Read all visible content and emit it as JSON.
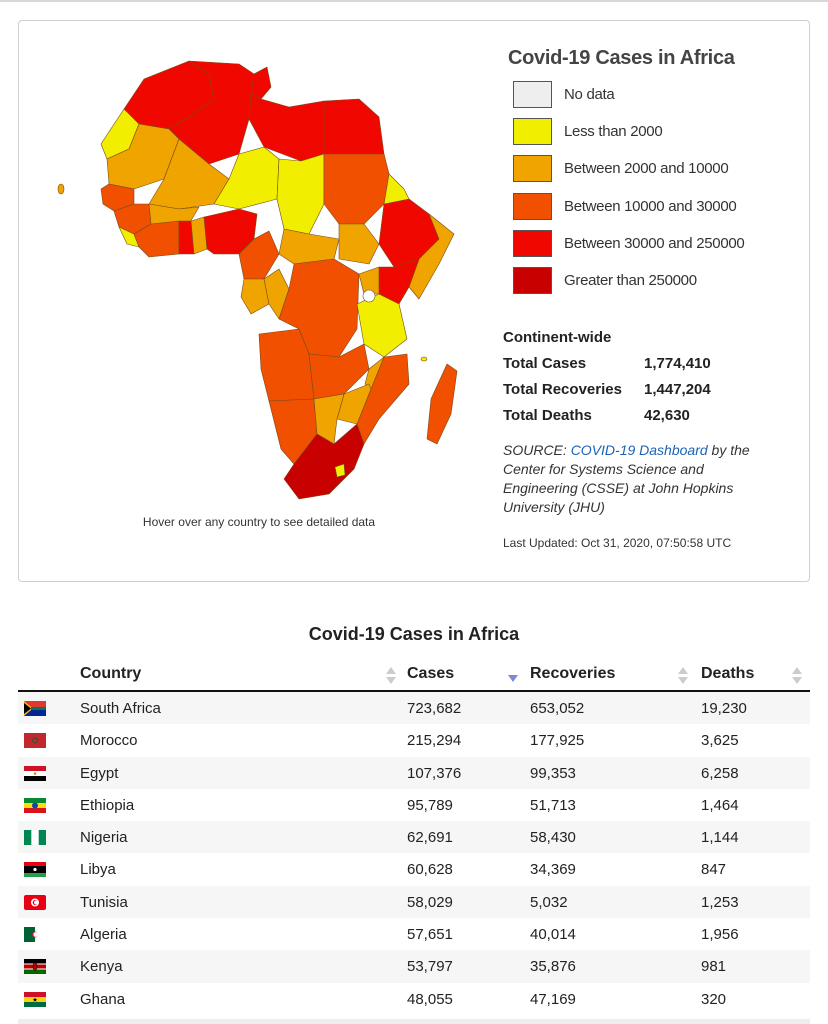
{
  "colors": {
    "no_data": "#eeeeee",
    "lt2000": "#f2ee00",
    "b2000_10000": "#f0a400",
    "b10000_30000": "#f05000",
    "b30000_250000": "#f00800",
    "gt250000": "#c80000"
  },
  "map": {
    "hover_note": "Hover over any country to see detailed data"
  },
  "legend": {
    "title": "Covid-19 Cases in Africa",
    "items": [
      {
        "label": "No data",
        "color": "#eeeeee"
      },
      {
        "label": "Less than 2000",
        "color": "#f2ee00"
      },
      {
        "label": "Between 2000 and 10000",
        "color": "#f0a400"
      },
      {
        "label": "Between 10000 and 30000",
        "color": "#f05000"
      },
      {
        "label": "Between 30000 and 250000",
        "color": "#f00800"
      },
      {
        "label": "Greater than 250000",
        "color": "#c80000"
      }
    ]
  },
  "stats": {
    "heading": "Continent-wide",
    "rows": [
      {
        "label": "Total Cases",
        "value": "1,774,410"
      },
      {
        "label": "Total Recoveries",
        "value": "1,447,204"
      },
      {
        "label": "Total Deaths",
        "value": "42,630"
      }
    ]
  },
  "source": {
    "prefix": "SOURCE: ",
    "link": "COVID-19 Dashboard",
    "suffix": " by the Center for Systems Science and Engineering (CSSE) at John Hopkins University (JHU)"
  },
  "last_updated": "Last Updated: Oct 31, 2020, 07:50:58 UTC",
  "table": {
    "title": "Covid-19 Cases in Africa",
    "headers": {
      "country": "Country",
      "cases": "Cases",
      "recoveries": "Recoveries",
      "deaths": "Deaths"
    },
    "rows": [
      {
        "country": "South Africa",
        "cases": "723,682",
        "recoveries": "653,052",
        "deaths": "19,230",
        "flag": "south-africa-flag-icon"
      },
      {
        "country": "Morocco",
        "cases": "215,294",
        "recoveries": "177,925",
        "deaths": "3,625",
        "flag": "morocco-flag-icon"
      },
      {
        "country": "Egypt",
        "cases": "107,376",
        "recoveries": "99,353",
        "deaths": "6,258",
        "flag": "egypt-flag-icon"
      },
      {
        "country": "Ethiopia",
        "cases": "95,789",
        "recoveries": "51,713",
        "deaths": "1,464",
        "flag": "ethiopia-flag-icon"
      },
      {
        "country": "Nigeria",
        "cases": "62,691",
        "recoveries": "58,430",
        "deaths": "1,144",
        "flag": "nigeria-flag-icon"
      },
      {
        "country": "Libya",
        "cases": "60,628",
        "recoveries": "34,369",
        "deaths": "847",
        "flag": "libya-flag-icon"
      },
      {
        "country": "Tunisia",
        "cases": "58,029",
        "recoveries": "5,032",
        "deaths": "1,253",
        "flag": "tunisia-flag-icon"
      },
      {
        "country": "Algeria",
        "cases": "57,651",
        "recoveries": "40,014",
        "deaths": "1,956",
        "flag": "algeria-flag-icon"
      },
      {
        "country": "Kenya",
        "cases": "53,797",
        "recoveries": "35,876",
        "deaths": "981",
        "flag": "kenya-flag-icon"
      },
      {
        "country": "Ghana",
        "cases": "48,055",
        "recoveries": "47,169",
        "deaths": "320",
        "flag": "ghana-flag-icon"
      }
    ]
  }
}
